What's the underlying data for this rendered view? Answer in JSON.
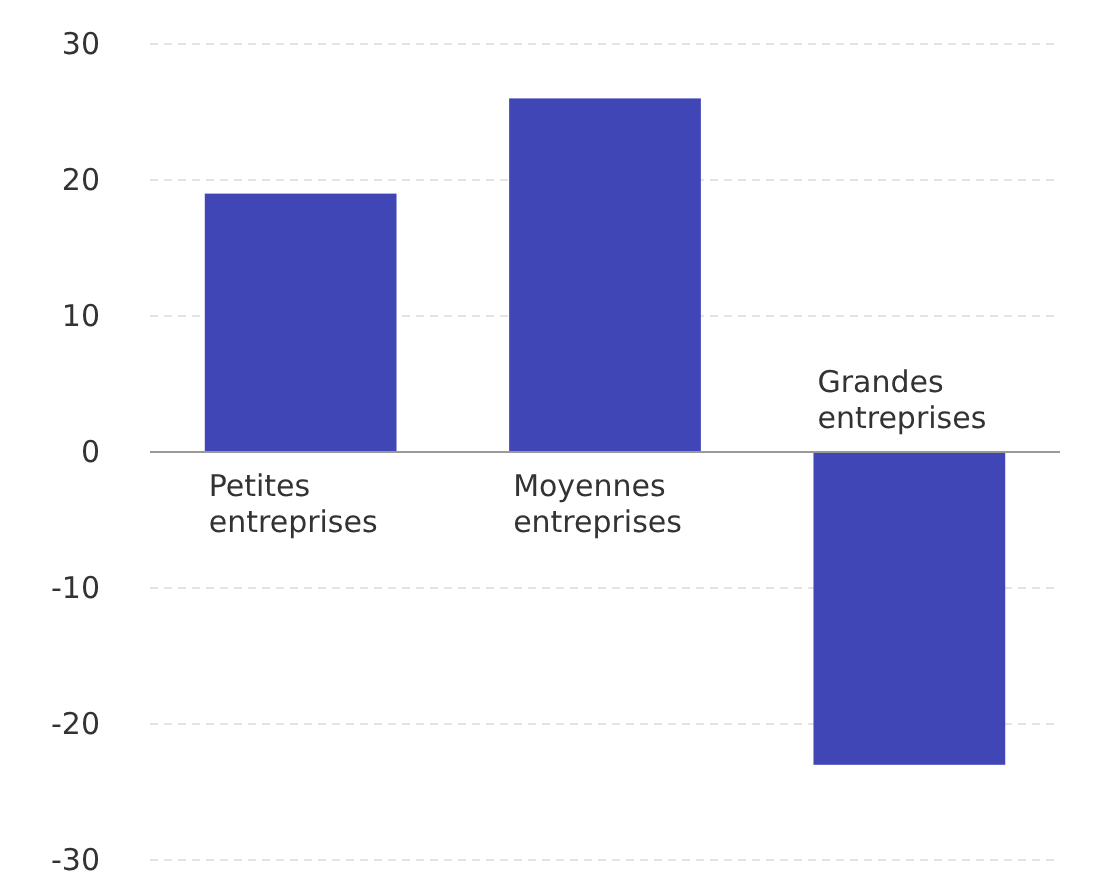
{
  "chart_data": {
    "type": "bar",
    "categories": [
      "Petites entreprises",
      "Moyennes entreprises",
      "Grandes entreprises"
    ],
    "values": [
      19,
      26,
      -23
    ],
    "color": "#4146b7",
    "ylim": [
      -30,
      30
    ],
    "yticks": [
      -30,
      -20,
      -10,
      0,
      10,
      20,
      30
    ],
    "grid": "y"
  }
}
